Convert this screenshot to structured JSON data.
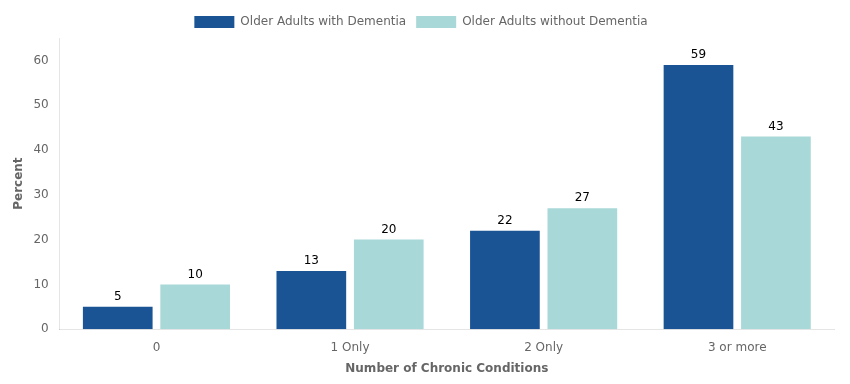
{
  "chart_data": {
    "type": "bar",
    "categories": [
      "0",
      "1 Only",
      "2 Only",
      "3 or more"
    ],
    "series": [
      {
        "name": "Older Adults with Dementia",
        "color": "#1a5494",
        "values": [
          5,
          13,
          22,
          59
        ]
      },
      {
        "name": "Older Adults without Dementia",
        "color": "#a8d8d8",
        "values": [
          10,
          20,
          27,
          43
        ]
      }
    ],
    "xlabel": "Number of Chronic Conditions",
    "ylabel": "Percent",
    "ylim": [
      0,
      65
    ],
    "yticks": [
      0,
      10,
      20,
      30,
      40,
      50,
      60
    ],
    "grid": false,
    "legend": "top",
    "data_labels": true
  }
}
